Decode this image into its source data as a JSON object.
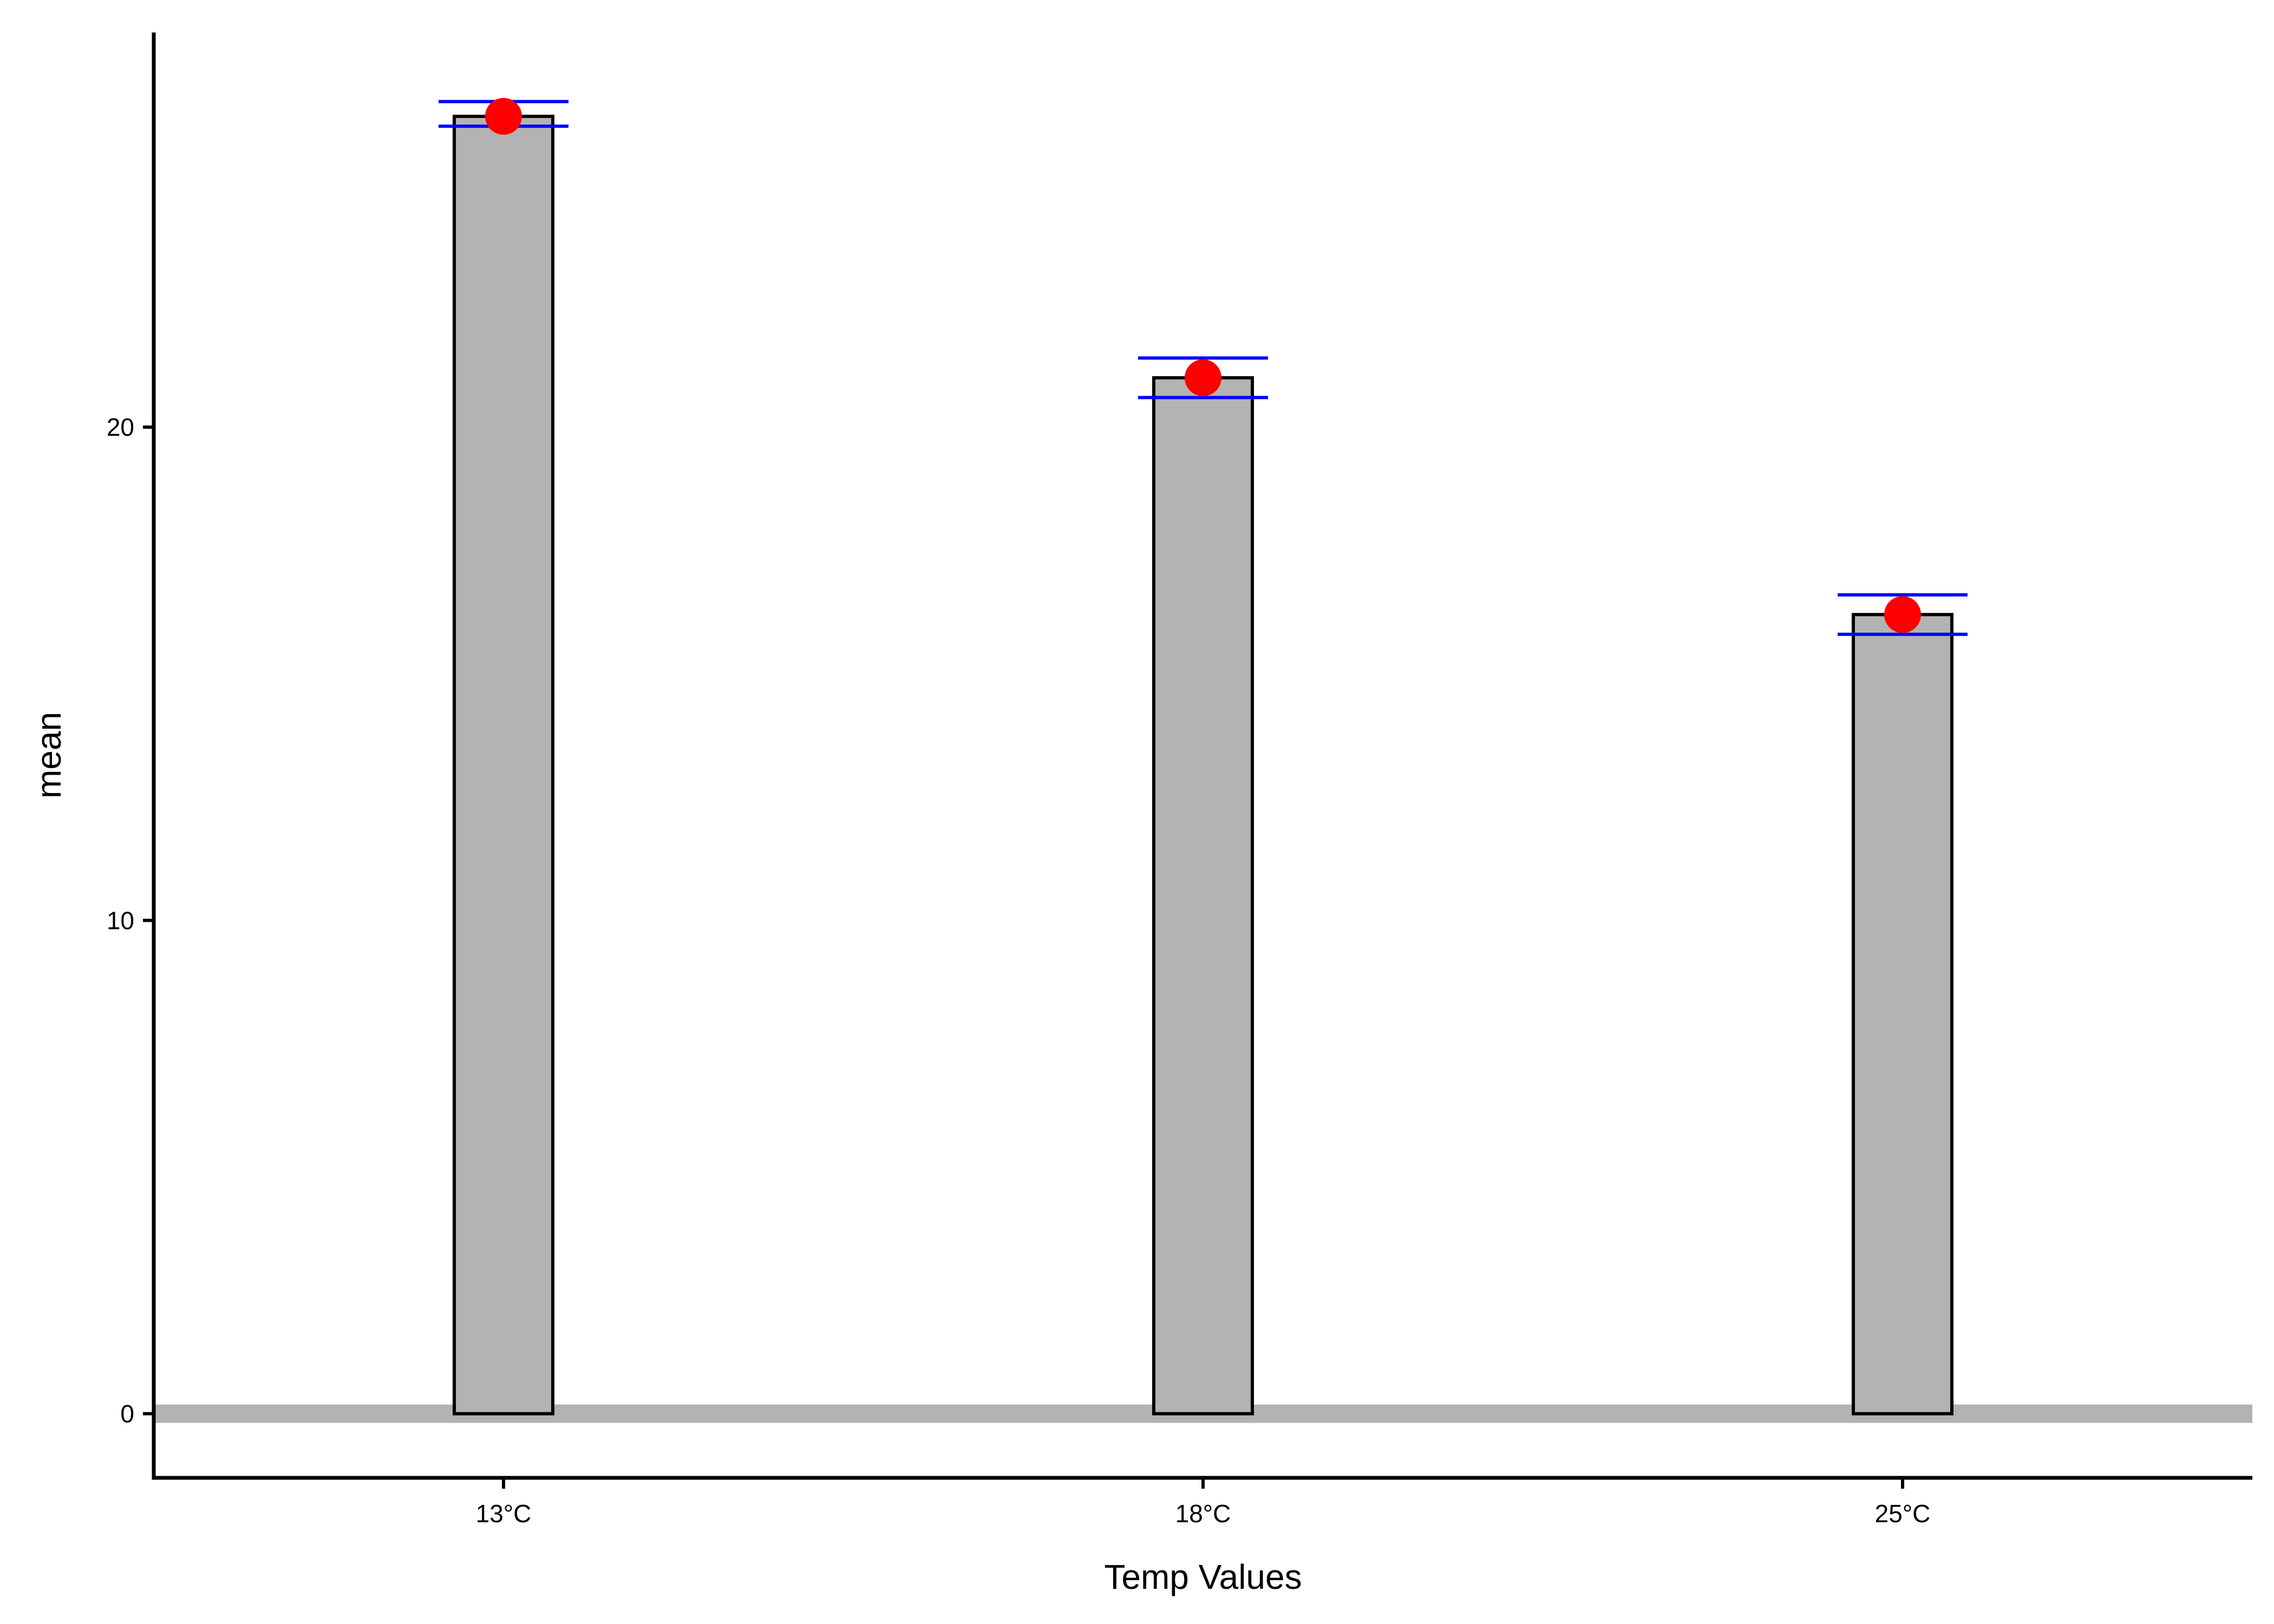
{
  "chart_data": {
    "type": "bar",
    "title": "",
    "xlabel": "Temp Values",
    "ylabel": "mean",
    "categories": [
      "13°C",
      "18°C",
      "25°C"
    ],
    "values": [
      26.3,
      21.0,
      16.2
    ],
    "error_bars": {
      "upper": [
        26.6,
        21.4,
        16.6
      ],
      "lower": [
        26.1,
        20.6,
        15.8
      ]
    },
    "ylim": [
      -1.3,
      28.0
    ],
    "yticks": [
      0,
      10,
      20
    ],
    "ytick_labels": [
      "0",
      "10",
      "20"
    ],
    "grid": false,
    "legend": "none",
    "colors": {
      "bar_fill": "#b3b3b3",
      "bar_stroke": "#000000",
      "point": "#ff0000",
      "error_bar": "#0000ff",
      "zero_line": "#b3b3b3",
      "axis": "#000000"
    }
  }
}
